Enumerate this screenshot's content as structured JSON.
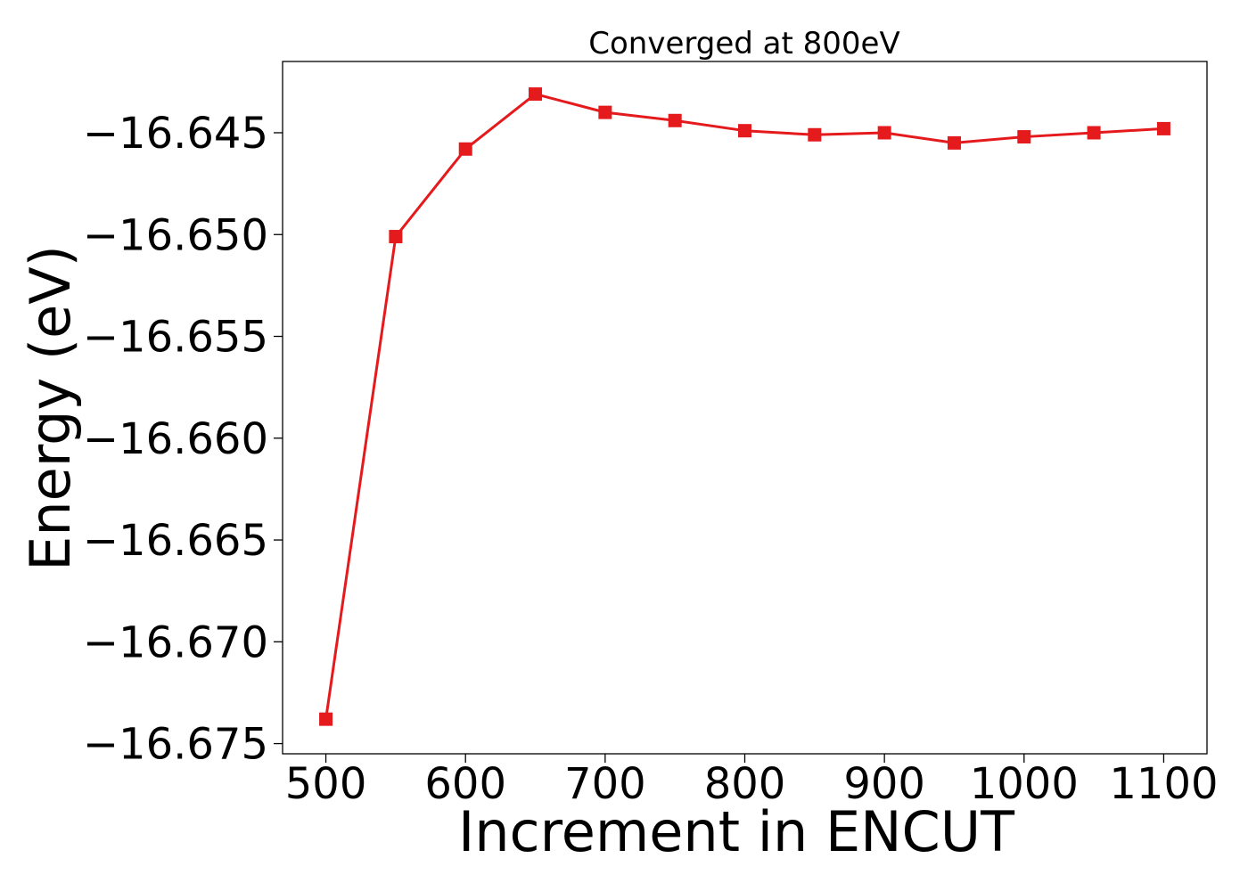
{
  "chart_data": {
    "type": "line",
    "title": "Converged at 800eV",
    "xlabel": "Increment in ENCUT",
    "ylabel": "Energy (eV)",
    "x": [
      500,
      550,
      600,
      650,
      700,
      750,
      800,
      850,
      900,
      950,
      1000,
      1050,
      1100
    ],
    "series": [
      {
        "values": [
          -16.6738,
          -16.6501,
          -16.6458,
          -16.6431,
          -16.644,
          -16.6444,
          -16.6449,
          -16.6451,
          -16.645,
          -16.6455,
          -16.6452,
          -16.645,
          -16.6448
        ],
        "color": "#e41a1c",
        "marker": "square"
      }
    ],
    "xlim": [
      469,
      1131
    ],
    "ylim": [
      -16.6755,
      -16.6415
    ],
    "xticks": [
      500,
      600,
      700,
      800,
      900,
      1000,
      1100
    ],
    "xtick_labels": [
      "500",
      "600",
      "700",
      "800",
      "900",
      "1000",
      "1100"
    ],
    "yticks": [
      -16.645,
      -16.65,
      -16.655,
      -16.66,
      -16.665,
      -16.67,
      -16.675
    ],
    "ytick_labels": [
      "−16.645",
      "−16.650",
      "−16.655",
      "−16.660",
      "−16.665",
      "−16.670",
      "−16.675"
    ],
    "grid": false,
    "legend": "none"
  }
}
